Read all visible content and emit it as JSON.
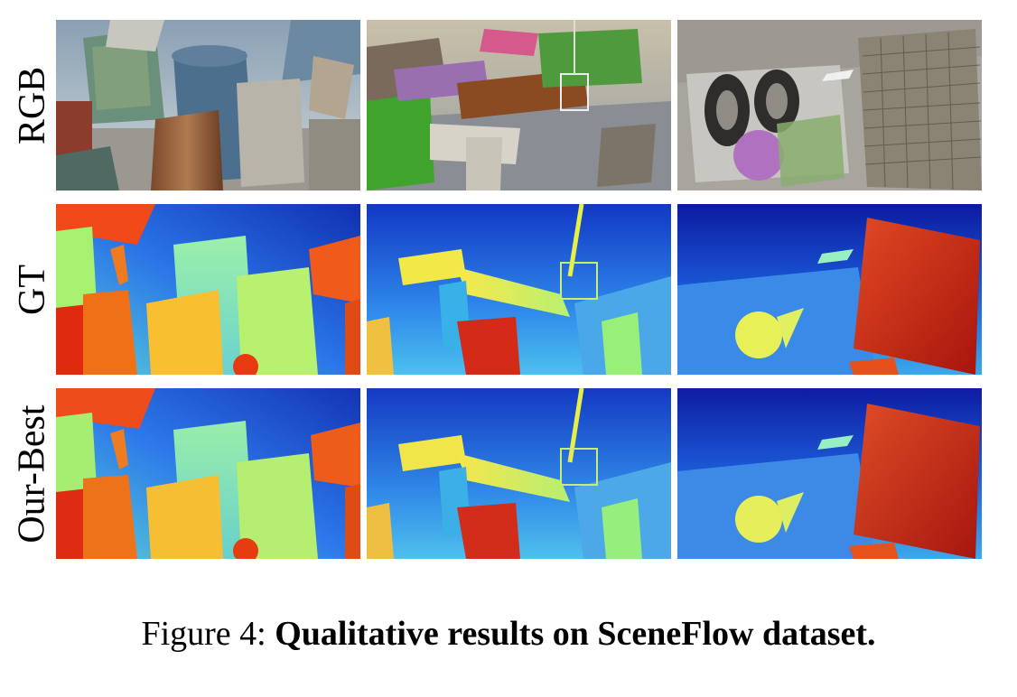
{
  "row_labels": [
    "RGB",
    "GT",
    "Our-Best"
  ],
  "caption": {
    "prefix": "Figure 4:",
    "title": "Qualitative results on SceneFlow dataset."
  },
  "colors": {
    "background": "#ffffff",
    "depth_far": "#0a1a9a",
    "depth_mid": "#3fb2f0",
    "depth_near": "#d42a15"
  }
}
